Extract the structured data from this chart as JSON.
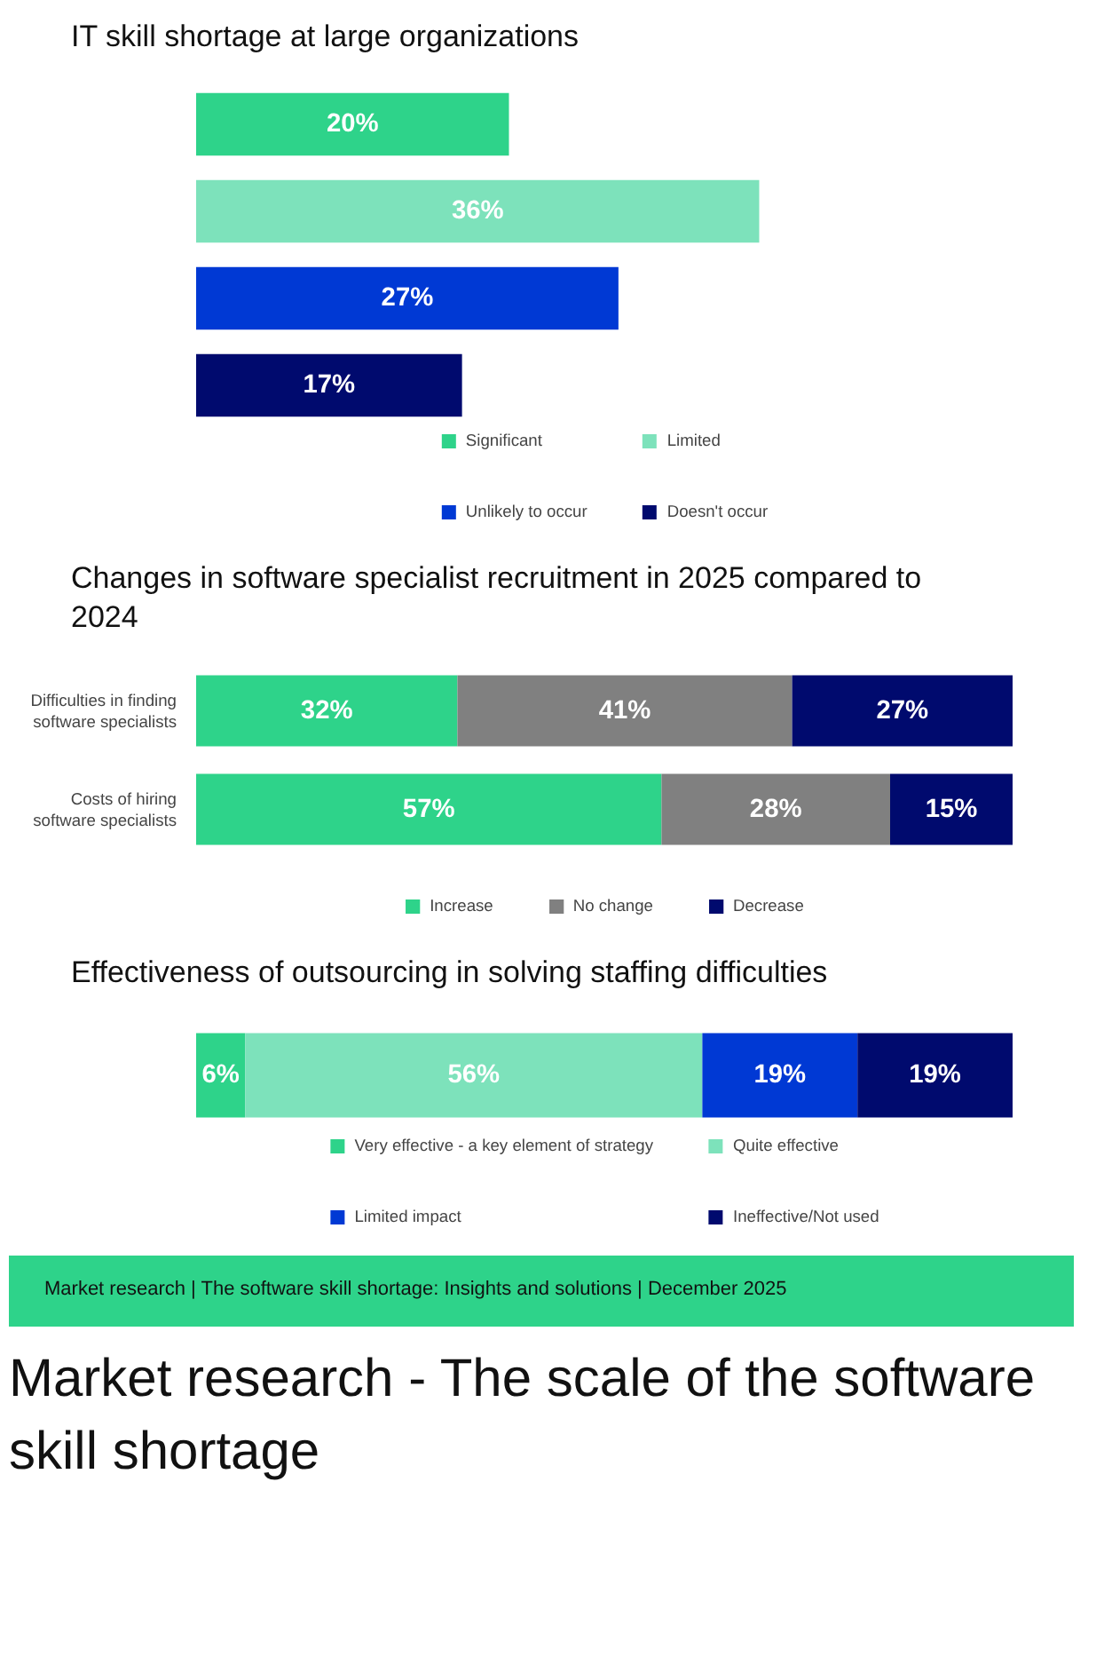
{
  "chart_data": [
    {
      "type": "bar",
      "title": "IT skill shortage at large organizations",
      "orientation": "horizontal",
      "stacked": true,
      "legend": "bottom",
      "tick_labels": false,
      "grid": false,
      "categories": [
        null,
        null,
        null,
        null
      ],
      "series": [
        {
          "name": "Significant",
          "color": "#2ed38a",
          "values": [
            20,
            null,
            null,
            null
          ],
          "value_labels": [
            "20%",
            null,
            null,
            null
          ]
        },
        {
          "name": "Limited",
          "color": "#7de2bb",
          "values": [
            null,
            36,
            null,
            null
          ],
          "value_labels": [
            null,
            "36%",
            null,
            null
          ]
        },
        {
          "name": "Unlikely to occur",
          "color": "#0039d4",
          "values": [
            null,
            null,
            27,
            null
          ],
          "value_labels": [
            null,
            null,
            "27%",
            null
          ]
        },
        {
          "name": "Doesn't occur",
          "color": "#000a6e",
          "values": [
            null,
            null,
            null,
            17
          ],
          "value_labels": [
            null,
            null,
            null,
            "17%"
          ]
        }
      ]
    },
    {
      "type": "bar",
      "title": "Changes in software specialist recruitment in 2025 compared to 2024",
      "orientation": "horizontal",
      "stacked": true,
      "legend": "bottom",
      "tick_labels": "y",
      "grid": false,
      "categories": [
        "Difficulties in finding software specialists",
        "Costs of hiring software specialists"
      ],
      "series": [
        {
          "name": "Increase",
          "color": "#2ed38a",
          "values": [
            32,
            57
          ],
          "value_labels": [
            "32%",
            "57%"
          ]
        },
        {
          "name": "No change",
          "color": "#808080",
          "values": [
            41,
            28
          ],
          "value_labels": [
            "41%",
            "28%"
          ]
        },
        {
          "name": "Decrease",
          "color": "#000a6e",
          "values": [
            27,
            15
          ],
          "value_labels": [
            "27%",
            "15%"
          ]
        }
      ]
    },
    {
      "type": "bar",
      "title": "Effectiveness of outsourcing in solving staffing difficulties",
      "orientation": "horizontal",
      "stacked": true,
      "legend": "bottom",
      "tick_labels": false,
      "grid": false,
      "categories": [
        null
      ],
      "series": [
        {
          "name": "Very effective - a key element of strategy",
          "color": "#2ed38a",
          "values": [
            6
          ],
          "value_labels": [
            "6%"
          ]
        },
        {
          "name": "Quite effective",
          "color": "#7de2bb",
          "values": [
            56
          ],
          "value_labels": [
            "56%"
          ]
        },
        {
          "name": "Limited impact",
          "color": "#0039d4",
          "values": [
            19
          ],
          "value_labels": [
            "19%"
          ]
        },
        {
          "name": "Ineffective/Not used",
          "color": "#000a6e",
          "values": [
            19
          ],
          "value_labels": [
            "19%"
          ]
        }
      ],
      "annotations": [
        "Market research | The software skill shortage: Insights and solutions | December 2025",
        "Market research - The scale of the software skill shortage"
      ]
    }
  ]
}
